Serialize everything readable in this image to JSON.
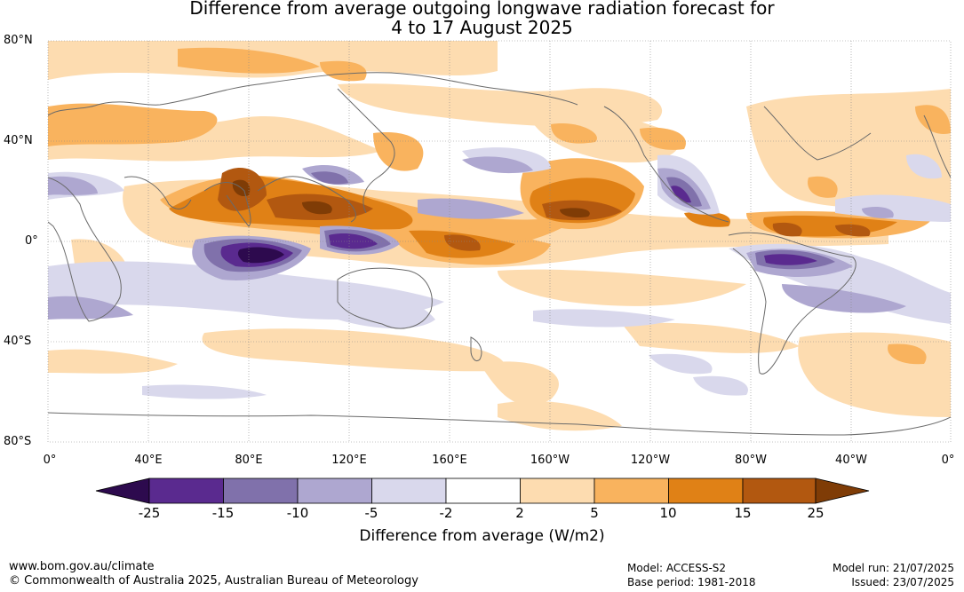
{
  "title": {
    "line1": "Difference from average outgoing longwave radiation forecast for",
    "line2": "4 to 17 August 2025"
  },
  "map": {
    "lat_labels": [
      "80°N",
      "40°N",
      "0°",
      "40°S",
      "80°S"
    ],
    "lon_labels": [
      "0°",
      "40°E",
      "80°E",
      "120°E",
      "160°E",
      "160°W",
      "120°W",
      "80°W",
      "40°W",
      "0°"
    ]
  },
  "colorbar": {
    "title": "Difference from average (W/m2)",
    "ticks": [
      "-25",
      "-15",
      "-10",
      "-5",
      "-2",
      "2",
      "5",
      "10",
      "15",
      "25"
    ],
    "colors": [
      "#2d0a4e",
      "#5a2a8f",
      "#8071ab",
      "#aea7d0",
      "#d9d8ec",
      "#ffffff",
      "#fddcb0",
      "#f9b35e",
      "#e08116",
      "#b25810",
      "#7f3c06"
    ]
  },
  "footer": {
    "url": "www.bom.gov.au/climate",
    "copyright": "© Commonwealth of Australia 2025, Australian Bureau of Meteorology",
    "model": "Model: ACCESS-S2",
    "base_period": "Base period: 1981-2018",
    "model_run": "Model run: 21/07/2025",
    "issued": "Issued: 23/07/2025"
  }
}
